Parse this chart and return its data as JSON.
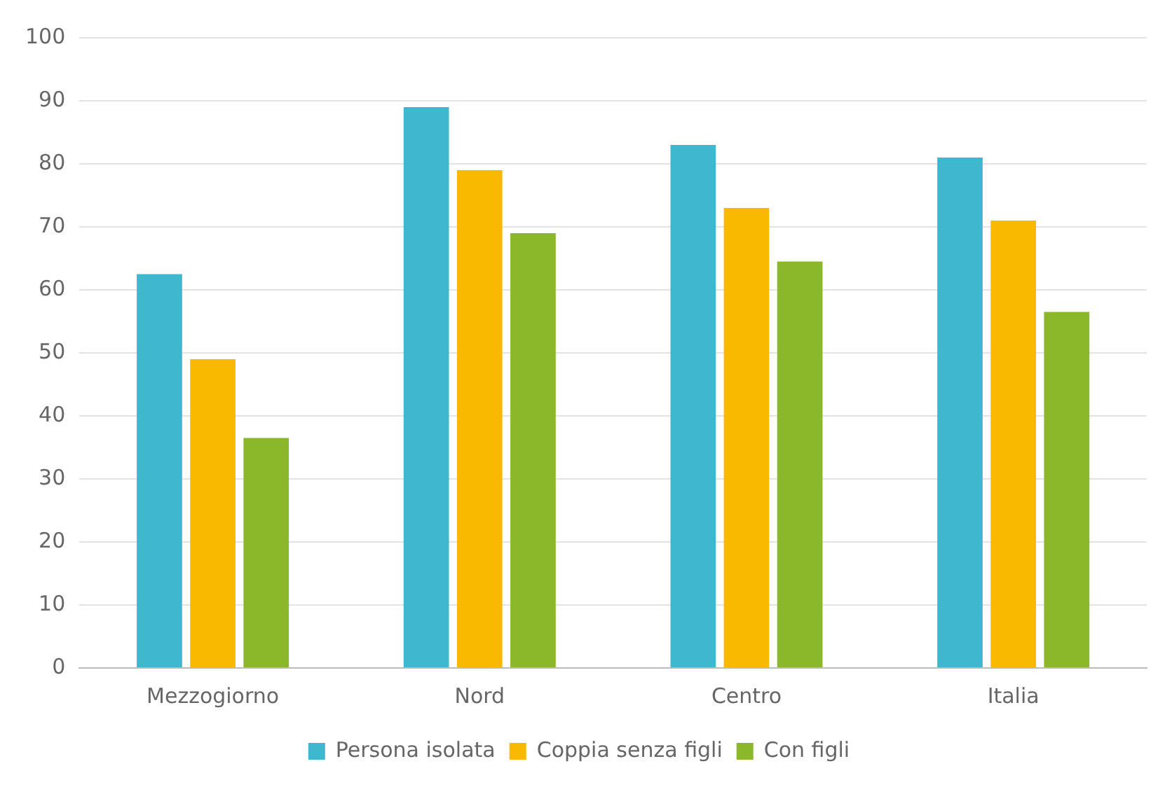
{
  "chart_data": {
    "type": "bar",
    "categories": [
      "Mezzogiorno",
      "Nord",
      "Centro",
      "Italia"
    ],
    "series": [
      {
        "name": "Persona isolata",
        "color": "#3fb8cf",
        "values": [
          62.5,
          89,
          83,
          81
        ]
      },
      {
        "name": "Coppia senza figli",
        "color": "#f9b900",
        "values": [
          49,
          79,
          73,
          71
        ]
      },
      {
        "name": "Con figli",
        "color": "#8ab82a",
        "values": [
          36.5,
          69,
          64.5,
          56.5
        ]
      }
    ],
    "ylim": [
      0,
      100
    ],
    "yticks": [
      0,
      10,
      20,
      30,
      40,
      50,
      60,
      70,
      80,
      90,
      100
    ],
    "grid": "y",
    "legend": "bottom"
  }
}
